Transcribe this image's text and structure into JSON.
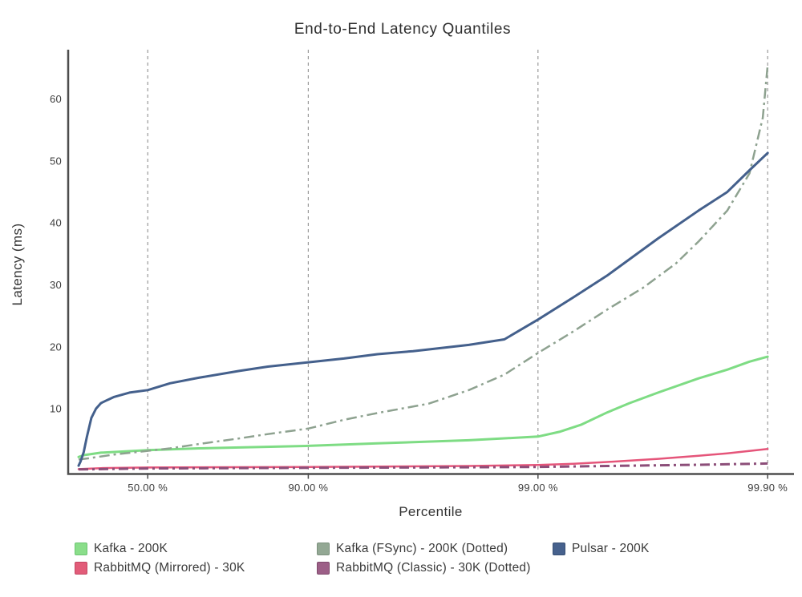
{
  "chart_data": {
    "type": "line",
    "title": "End-to-End Latency Quantiles",
    "xlabel": "Percentile",
    "ylabel": "Latency (ms)",
    "x_scale": "log10(1/(1-p)) percentile axis",
    "x_ticks": [
      {
        "p": 50,
        "label": "50.00 %"
      },
      {
        "p": 90,
        "label": "90.00 %"
      },
      {
        "p": 99,
        "label": "99.00 %"
      },
      {
        "p": 99.9,
        "label": "99.90 %"
      }
    ],
    "y_ticks": [
      10,
      20,
      30,
      40,
      50,
      60
    ],
    "ylim": [
      0,
      68
    ],
    "xlim_percentile": [
      0,
      99.9
    ],
    "grid": {
      "vertical_dashed": true,
      "color": "#999999"
    },
    "axis_color": "#4d4d4d",
    "legend_position": "bottom",
    "series": [
      {
        "name": "Kafka - 200K",
        "line_color": "#7edc84",
        "swatch_fill": "#8ade8a",
        "swatch_border": "#6cc472",
        "style": "solid",
        "width": 3,
        "points": [
          [
            0,
            2.2
          ],
          [
            5,
            2.5
          ],
          [
            20,
            2.9
          ],
          [
            50,
            3.3
          ],
          [
            70,
            3.6
          ],
          [
            90,
            4.0
          ],
          [
            95,
            4.4
          ],
          [
            98,
            4.9
          ],
          [
            99,
            5.5
          ],
          [
            99.2,
            6.3
          ],
          [
            99.35,
            7.4
          ],
          [
            99.5,
            9.4
          ],
          [
            99.6,
            10.9
          ],
          [
            99.7,
            12.6
          ],
          [
            99.8,
            14.9
          ],
          [
            99.85,
            16.3
          ],
          [
            99.88,
            17.6
          ],
          [
            99.9,
            18.4
          ]
        ]
      },
      {
        "name": "Kafka (FSync) - 200K (Dotted)",
        "line_color": "#8ea290",
        "swatch_fill": "#93a894",
        "swatch_border": "#7d917e",
        "style": "dash-dot",
        "dash": "13 5 3 5",
        "width": 2.5,
        "points": [
          [
            0,
            1.8
          ],
          [
            10,
            2.0
          ],
          [
            30,
            2.6
          ],
          [
            50,
            3.2
          ],
          [
            60,
            3.6
          ],
          [
            70,
            4.3
          ],
          [
            80,
            5.2
          ],
          [
            85,
            5.9
          ],
          [
            90,
            6.8
          ],
          [
            93,
            8.2
          ],
          [
            95,
            9.3
          ],
          [
            97,
            10.8
          ],
          [
            98,
            13.0
          ],
          [
            98.6,
            15.5
          ],
          [
            99,
            19.0
          ],
          [
            99.3,
            22.5
          ],
          [
            99.5,
            26.0
          ],
          [
            99.65,
            29.5
          ],
          [
            99.75,
            33.5
          ],
          [
            99.8,
            37.0
          ],
          [
            99.85,
            42.0
          ],
          [
            99.88,
            48.0
          ],
          [
            99.895,
            57.0
          ],
          [
            99.9,
            65.5
          ]
        ]
      },
      {
        "name": "Pulsar - 200K",
        "line_color": "#44608c",
        "swatch_fill": "#46618d",
        "swatch_border": "#374f74",
        "style": "solid",
        "width": 3,
        "points": [
          [
            0,
            0.8
          ],
          [
            2,
            1.5
          ],
          [
            5,
            3.0
          ],
          [
            8,
            5.5
          ],
          [
            12,
            8.5
          ],
          [
            16,
            10.0
          ],
          [
            20,
            10.9
          ],
          [
            25,
            11.4
          ],
          [
            30,
            11.9
          ],
          [
            40,
            12.6
          ],
          [
            50,
            13.0
          ],
          [
            60,
            14.1
          ],
          [
            70,
            15.0
          ],
          [
            80,
            16.1
          ],
          [
            85,
            16.8
          ],
          [
            90,
            17.5
          ],
          [
            93,
            18.1
          ],
          [
            95,
            18.8
          ],
          [
            96.5,
            19.3
          ],
          [
            98,
            20.3
          ],
          [
            98.6,
            21.2
          ],
          [
            99,
            24.4
          ],
          [
            99.3,
            28.0
          ],
          [
            99.5,
            31.5
          ],
          [
            99.7,
            37.5
          ],
          [
            99.8,
            42.0
          ],
          [
            99.85,
            45.0
          ],
          [
            99.88,
            48.5
          ],
          [
            99.9,
            51.3
          ]
        ]
      },
      {
        "name": "RabbitMQ (Mirrored) - 30K",
        "line_color": "#e5557a",
        "swatch_fill": "#e25c79",
        "swatch_border": "#c24763",
        "style": "solid",
        "width": 2.5,
        "points": [
          [
            0,
            0.25
          ],
          [
            20,
            0.4
          ],
          [
            50,
            0.5
          ],
          [
            90,
            0.6
          ],
          [
            98,
            0.75
          ],
          [
            99,
            0.9
          ],
          [
            99.3,
            1.1
          ],
          [
            99.5,
            1.4
          ],
          [
            99.7,
            1.9
          ],
          [
            99.8,
            2.4
          ],
          [
            99.85,
            2.8
          ],
          [
            99.9,
            3.5
          ]
        ]
      },
      {
        "name": "RabbitMQ (Classic) - 30K (Dotted)",
        "line_color": "#8c4e79",
        "swatch_fill": "#9c5f87",
        "swatch_border": "#7e4a6c",
        "style": "dash-dot",
        "dash": "12 5 3 5",
        "width": 3,
        "points": [
          [
            0,
            0.2
          ],
          [
            50,
            0.35
          ],
          [
            90,
            0.45
          ],
          [
            98,
            0.55
          ],
          [
            99,
            0.6
          ],
          [
            99.5,
            0.75
          ],
          [
            99.8,
            0.95
          ],
          [
            99.9,
            1.15
          ]
        ]
      }
    ]
  }
}
